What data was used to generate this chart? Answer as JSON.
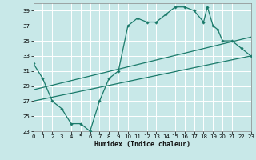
{
  "xlabel": "Humidex (Indice chaleur)",
  "bg_color": "#c8e8e8",
  "grid_color": "#ffffff",
  "line_color": "#1a7a6a",
  "xlim": [
    0,
    23
  ],
  "ylim": [
    23,
    40
  ],
  "xticks": [
    0,
    1,
    2,
    3,
    4,
    5,
    6,
    7,
    8,
    9,
    10,
    11,
    12,
    13,
    14,
    15,
    16,
    17,
    18,
    19,
    20,
    21,
    22,
    23
  ],
  "yticks": [
    23,
    25,
    27,
    29,
    31,
    33,
    35,
    37,
    39
  ],
  "main_x": [
    0,
    1,
    2,
    3,
    4,
    5,
    6,
    7,
    8,
    9,
    10,
    11,
    12,
    13,
    14,
    15,
    16,
    17,
    18,
    18.4,
    19,
    19.5,
    20,
    21,
    22,
    23
  ],
  "main_y": [
    32,
    30,
    27,
    26,
    24,
    24,
    23,
    27,
    30,
    31,
    37,
    38,
    37.5,
    37.5,
    38.5,
    39.5,
    39.5,
    39,
    37.5,
    39.5,
    37,
    36.5,
    35,
    35,
    34,
    33
  ],
  "line2_x": [
    0,
    23
  ],
  "line2_y": [
    27,
    33
  ],
  "line3_x": [
    0,
    23
  ],
  "line3_y": [
    28.5,
    35.5
  ],
  "lw": 0.9
}
